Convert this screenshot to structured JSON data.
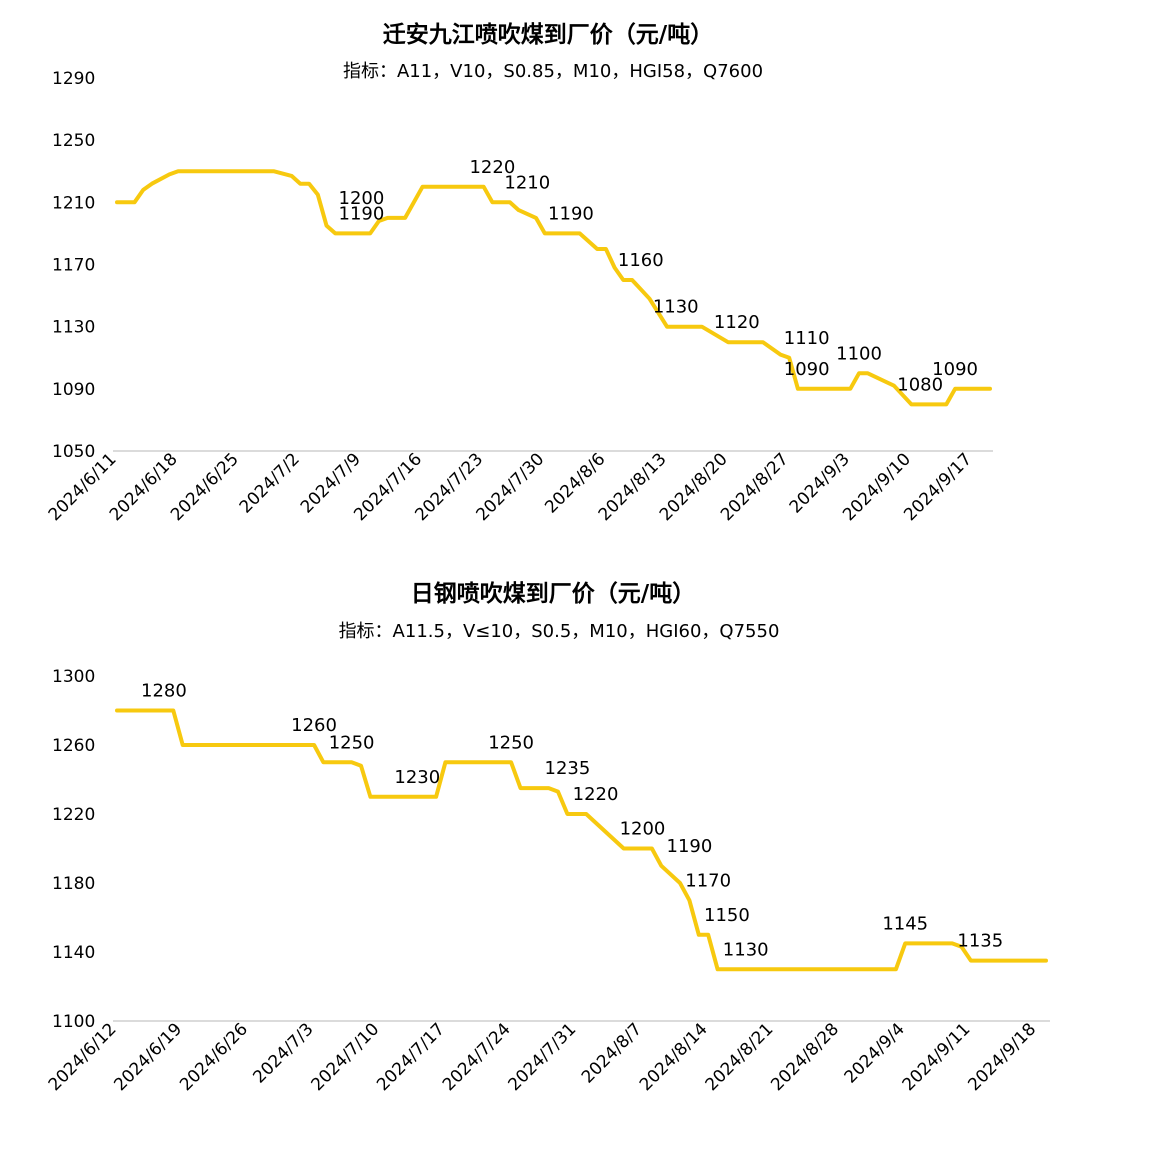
{
  "chart_data": [
    {
      "type": "line",
      "title": "迁安九江喷吹煤到厂价（元/吨）",
      "subtitle": "指标：A11，V10，S0.85，M10，HGI58，Q7600",
      "xlabel": "",
      "ylabel": "",
      "ylim": [
        1050,
        1290
      ],
      "yticks": [
        1050,
        1090,
        1130,
        1170,
        1210,
        1250,
        1290
      ],
      "x_start": "2024/6/11",
      "x_end": "2024/9/19",
      "xticks": [
        "2024/6/11",
        "2024/6/18",
        "2024/6/25",
        "2024/7/2",
        "2024/7/9",
        "2024/7/16",
        "2024/7/23",
        "2024/7/30",
        "2024/8/6",
        "2024/8/13",
        "2024/8/20",
        "2024/8/27",
        "2024/9/3",
        "2024/9/10",
        "2024/9/17"
      ],
      "grid": false,
      "legend": "none",
      "color": "#F7C90F",
      "series": [
        {
          "x": [
            "2024/6/11",
            "2024/6/13",
            "2024/6/14",
            "2024/6/15",
            "2024/6/17",
            "2024/6/18",
            "2024/6/19",
            "2024/6/20",
            "2024/6/23",
            "2024/6/26",
            "2024/6/29",
            "2024/7/1",
            "2024/7/2",
            "2024/7/3",
            "2024/7/4",
            "2024/7/5",
            "2024/7/6",
            "2024/7/9",
            "2024/7/10",
            "2024/7/11",
            "2024/7/12",
            "2024/7/14",
            "2024/7/16",
            "2024/7/17",
            "2024/7/20",
            "2024/7/23",
            "2024/7/24",
            "2024/7/25",
            "2024/7/26",
            "2024/7/27",
            "2024/7/29",
            "2024/7/30",
            "2024/7/31",
            "2024/8/3",
            "2024/8/5",
            "2024/8/6",
            "2024/8/7",
            "2024/8/8",
            "2024/8/9",
            "2024/8/11",
            "2024/8/13",
            "2024/8/14",
            "2024/8/15",
            "2024/8/16",
            "2024/8/17",
            "2024/8/20",
            "2024/8/21",
            "2024/8/24",
            "2024/8/26",
            "2024/8/27",
            "2024/8/28",
            "2024/9/2",
            "2024/9/3",
            "2024/9/4",
            "2024/9/5",
            "2024/9/8",
            "2024/9/10",
            "2024/9/11",
            "2024/9/14",
            "2024/9/15",
            "2024/9/16",
            "2024/9/19"
          ],
          "y": [
            1210,
            1210,
            1218,
            1222,
            1228,
            1230,
            1230,
            1230,
            1230,
            1230,
            1230,
            1227,
            1222,
            1222,
            1215,
            1195,
            1190,
            1190,
            1190,
            1198,
            1200,
            1200,
            1220,
            1220,
            1220,
            1220,
            1210,
            1210,
            1210,
            1205,
            1200,
            1190,
            1190,
            1190,
            1180,
            1180,
            1168,
            1160,
            1160,
            1148,
            1130,
            1130,
            1130,
            1130,
            1130,
            1120,
            1120,
            1120,
            1112,
            1110,
            1090,
            1090,
            1090,
            1100,
            1100,
            1092,
            1080,
            1080,
            1080,
            1090,
            1090,
            1090
          ]
        }
      ],
      "labels": [
        {
          "x": "2024/7/9",
          "y": 1200,
          "text": "1200"
        },
        {
          "x": "2024/7/9",
          "y": 1190,
          "text": "1190"
        },
        {
          "x": "2024/7/24",
          "y": 1220,
          "text": "1220"
        },
        {
          "x": "2024/7/28",
          "y": 1210,
          "text": "1210"
        },
        {
          "x": "2024/8/2",
          "y": 1190,
          "text": "1190"
        },
        {
          "x": "2024/8/10",
          "y": 1160,
          "text": "1160"
        },
        {
          "x": "2024/8/14",
          "y": 1130,
          "text": "1130"
        },
        {
          "x": "2024/8/21",
          "y": 1120,
          "text": "1120"
        },
        {
          "x": "2024/8/29",
          "y": 1110,
          "text": "1110"
        },
        {
          "x": "2024/8/29",
          "y": 1090,
          "text": "1090"
        },
        {
          "x": "2024/9/4",
          "y": 1100,
          "text": "1100"
        },
        {
          "x": "2024/9/15",
          "y": 1090,
          "text": "1090"
        },
        {
          "x": "2024/9/11",
          "y": 1080,
          "text": "1080"
        }
      ]
    },
    {
      "type": "line",
      "title": "日钢喷吹煤到厂价（元/吨）",
      "subtitle": "指标：A11.5，V≤10，S0.5，M10，HGI60，Q7550",
      "xlabel": "",
      "ylabel": "",
      "ylim": [
        1100,
        1300
      ],
      "yticks": [
        1100,
        1140,
        1180,
        1220,
        1260,
        1300
      ],
      "x_start": "2024/6/12",
      "x_end": "2024/9/19",
      "xticks": [
        "2024/6/12",
        "2024/6/19",
        "2024/6/26",
        "2024/7/3",
        "2024/7/10",
        "2024/7/17",
        "2024/7/24",
        "2024/7/31",
        "2024/8/7",
        "2024/8/14",
        "2024/8/21",
        "2024/8/28",
        "2024/9/4",
        "2024/9/11",
        "2024/9/18"
      ],
      "grid": false,
      "legend": "none",
      "color": "#F7C90F",
      "series": [
        {
          "x": [
            "2024/6/12",
            "2024/6/18",
            "2024/6/19",
            "2024/6/20",
            "2024/7/3",
            "2024/7/4",
            "2024/7/5",
            "2024/7/7",
            "2024/7/8",
            "2024/7/9",
            "2024/7/15",
            "2024/7/16",
            "2024/7/17",
            "2024/7/23",
            "2024/7/24",
            "2024/7/25",
            "2024/7/28",
            "2024/7/29",
            "2024/7/30",
            "2024/8/1",
            "2024/8/5",
            "2024/8/6",
            "2024/8/8",
            "2024/8/9",
            "2024/8/11",
            "2024/8/12",
            "2024/8/13",
            "2024/8/14",
            "2024/8/15",
            "2024/9/1",
            "2024/9/3",
            "2024/9/4",
            "2024/9/9",
            "2024/9/10",
            "2024/9/11",
            "2024/9/19"
          ],
          "y": [
            1280,
            1280,
            1260,
            1260,
            1260,
            1250,
            1250,
            1250,
            1248,
            1230,
            1230,
            1230,
            1250,
            1250,
            1250,
            1235,
            1235,
            1233,
            1220,
            1220,
            1200,
            1200,
            1200,
            1190,
            1180,
            1170,
            1150,
            1150,
            1130,
            1130,
            1130,
            1145,
            1145,
            1143,
            1135,
            1135
          ]
        }
      ],
      "labels": [
        {
          "x": "2024/6/17",
          "y": 1280,
          "text": "1280"
        },
        {
          "x": "2024/7/3",
          "y": 1260,
          "text": "1260"
        },
        {
          "x": "2024/7/7",
          "y": 1250,
          "text": "1250"
        },
        {
          "x": "2024/7/14",
          "y": 1230,
          "text": "1230"
        },
        {
          "x": "2024/7/24",
          "y": 1250,
          "text": "1250"
        },
        {
          "x": "2024/7/30",
          "y": 1235,
          "text": "1235"
        },
        {
          "x": "2024/8/2",
          "y": 1220,
          "text": "1220"
        },
        {
          "x": "2024/8/7",
          "y": 1200,
          "text": "1200"
        },
        {
          "x": "2024/8/12",
          "y": 1190,
          "text": "1190"
        },
        {
          "x": "2024/8/14",
          "y": 1170,
          "text": "1170"
        },
        {
          "x": "2024/8/16",
          "y": 1150,
          "text": "1150"
        },
        {
          "x": "2024/8/18",
          "y": 1130,
          "text": "1130"
        },
        {
          "x": "2024/9/4",
          "y": 1145,
          "text": "1145"
        },
        {
          "x": "2024/9/12",
          "y": 1135,
          "text": "1135"
        }
      ]
    }
  ]
}
